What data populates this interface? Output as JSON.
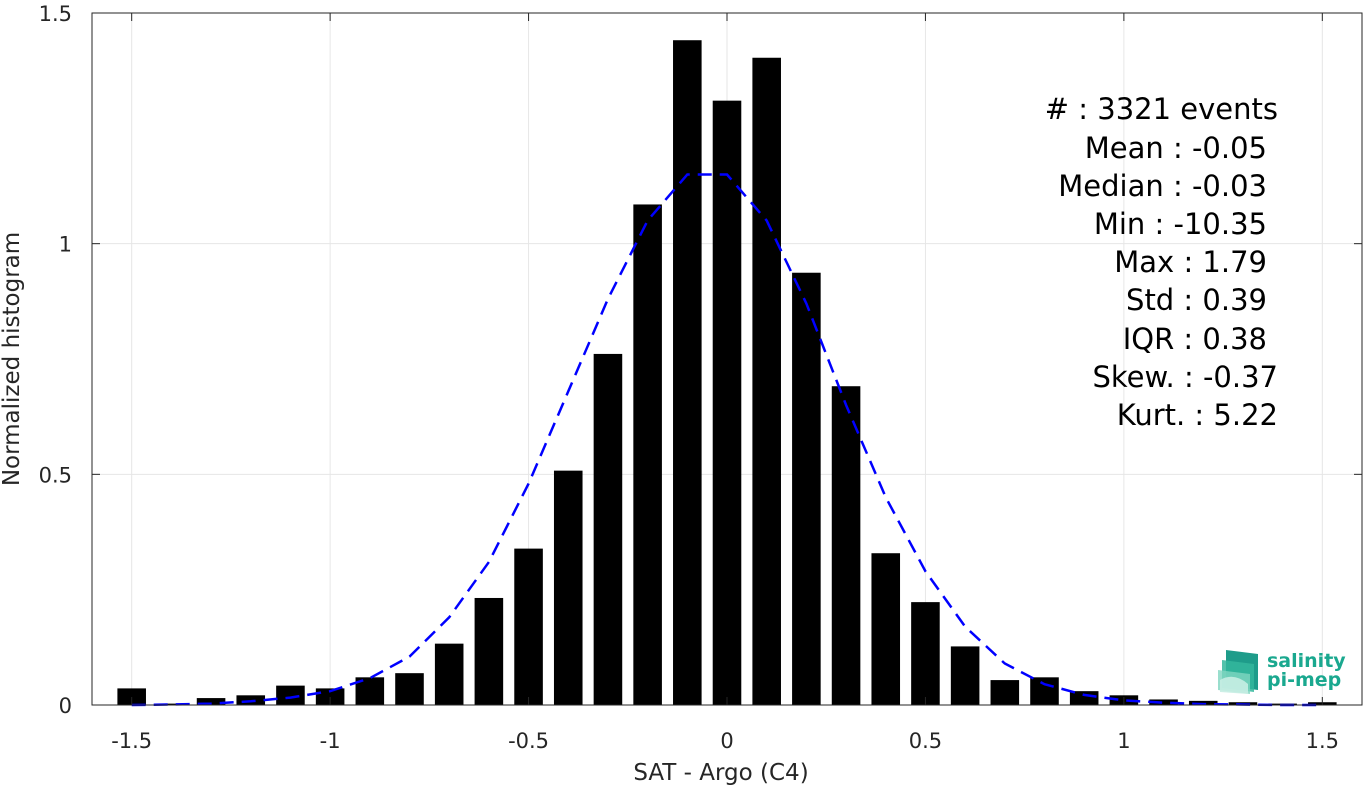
{
  "chart_data": {
    "type": "bar",
    "xlabel": "SAT - Argo (C4)",
    "ylabel": "Normalized histogram",
    "xlim": [
      -1.6,
      1.6
    ],
    "ylim": [
      0,
      1.5
    ],
    "xticks": [
      -1.5,
      -1,
      -0.5,
      0,
      0.5,
      1,
      1.5
    ],
    "xtick_labels": [
      "-1.5",
      "-1",
      "-0.5",
      "0",
      "0.5",
      "1",
      "1.5"
    ],
    "yticks": [
      0,
      0.5,
      1,
      1.5
    ],
    "ytick_labels": [
      "0",
      "0.5",
      "1",
      "1.5"
    ],
    "grid": true,
    "bar_color": "#000000",
    "fit_color": "#0000ff",
    "bin_width": 0.1,
    "series": [
      {
        "type": "bar",
        "x": [
          -1.5,
          -1.4,
          -1.3,
          -1.2,
          -1.1,
          -1.0,
          -0.9,
          -0.8,
          -0.7,
          -0.6,
          -0.5,
          -0.4,
          -0.3,
          -0.2,
          -0.1,
          0.0,
          0.1,
          0.2,
          0.3,
          0.4,
          0.5,
          0.6,
          0.7,
          0.8,
          0.9,
          1.0,
          1.1,
          1.2,
          1.3,
          1.4,
          1.5
        ],
        "values": [
          0.036,
          0.003,
          0.015,
          0.021,
          0.042,
          0.036,
          0.06,
          0.069,
          0.133,
          0.232,
          0.339,
          0.508,
          0.761,
          1.085,
          1.441,
          1.31,
          1.403,
          0.937,
          0.691,
          0.329,
          0.223,
          0.127,
          0.054,
          0.06,
          0.03,
          0.021,
          0.012,
          0.009,
          0.006,
          0.003,
          0.006
        ]
      },
      {
        "type": "line",
        "style": "dashed",
        "x": [
          -1.5,
          -1.4,
          -1.3,
          -1.2,
          -1.1,
          -1.0,
          -0.9,
          -0.8,
          -0.7,
          -0.6,
          -0.5,
          -0.4,
          -0.3,
          -0.2,
          -0.1,
          0.0,
          0.1,
          0.2,
          0.3,
          0.4,
          0.5,
          0.6,
          0.7,
          0.8,
          0.9,
          1.0,
          1.1,
          1.2,
          1.3,
          1.4,
          1.5
        ],
        "values": [
          0.0,
          0.001,
          0.003,
          0.008,
          0.016,
          0.03,
          0.058,
          0.105,
          0.19,
          0.31,
          0.48,
          0.68,
          0.88,
          1.05,
          1.15,
          1.15,
          1.05,
          0.87,
          0.65,
          0.45,
          0.29,
          0.17,
          0.09,
          0.045,
          0.022,
          0.01,
          0.005,
          0.002,
          0.001,
          0.0,
          0.0
        ]
      }
    ],
    "annotations": [
      "#  : 3321 events",
      "Mean : -0.05",
      "Median : -0.03",
      "Min : -10.35",
      "Max : 1.79",
      "Std : 0.39",
      "IQR : 0.38",
      "Skew. : -0.37",
      "Kurt. : 5.22"
    ]
  },
  "logo": {
    "line1": "salinity",
    "line2": "pi-mep",
    "color": "#1aa88f"
  }
}
